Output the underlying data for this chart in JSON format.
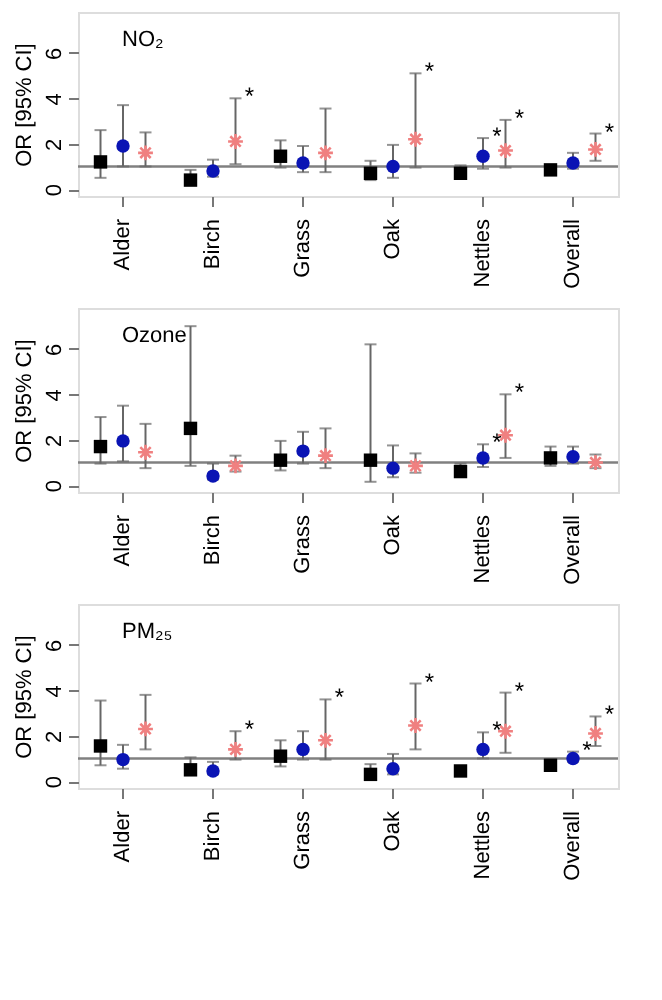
{
  "chart_data": [
    {
      "type": "scatter",
      "title": "NO₂",
      "ylabel": "OR [95% CI]",
      "categories": [
        "Alder",
        "Birch",
        "Grass",
        "Oak",
        "Nettles",
        "Overall"
      ],
      "ylim": [
        -0.3,
        7.8
      ],
      "yticks": [
        0,
        2,
        4,
        6
      ],
      "grid": false,
      "ref_lines": [
        {
          "axis": "y",
          "value": 1,
          "color": "#808080"
        }
      ],
      "series": [
        {
          "color": "#000000",
          "marker": "square",
          "values": [
            1.2,
            0.4,
            1.45,
            0.7,
            0.7,
            0.85
          ],
          "errors": [
            [
              0.5,
              2.6
            ],
            [
              0.25,
              0.85
            ],
            [
              0.95,
              2.15
            ],
            [
              0.4,
              1.25
            ],
            [
              0.5,
              1.05
            ],
            [
              0.7,
              1.0
            ]
          ]
        },
        {
          "color": "#0a14b4",
          "marker": "circle",
          "values": [
            1.9,
            0.8,
            1.15,
            1.0,
            1.45,
            1.15
          ],
          "errors": [
            [
              1.0,
              3.7
            ],
            [
              0.55,
              1.3
            ],
            [
              0.75,
              1.9
            ],
            [
              0.5,
              1.95
            ],
            [
              0.9,
              2.25
            ],
            [
              0.9,
              1.6
            ]
          ],
          "value_labels": [
            null,
            null,
            null,
            null,
            "*",
            null
          ]
        },
        {
          "color": "#f08080",
          "marker": "cross",
          "values": [
            1.6,
            2.1,
            1.6,
            2.2,
            1.7,
            1.75
          ],
          "errors": [
            [
              1.0,
              2.5
            ],
            [
              1.1,
              4.0
            ],
            [
              0.75,
              3.55
            ],
            [
              0.95,
              5.1
            ],
            [
              0.95,
              3.05
            ],
            [
              1.25,
              2.45
            ]
          ],
          "value_labels": [
            null,
            "*",
            null,
            "*",
            "*",
            "*"
          ]
        }
      ]
    },
    {
      "type": "scatter",
      "title": "Ozone",
      "ylabel": "OR [95% CI]",
      "categories": [
        "Alder",
        "Birch",
        "Grass",
        "Oak",
        "Nettles",
        "Overall"
      ],
      "ylim": [
        -0.3,
        7.8
      ],
      "yticks": [
        0,
        2,
        4,
        6
      ],
      "grid": false,
      "ref_lines": [
        {
          "axis": "y",
          "value": 1,
          "color": "#808080"
        }
      ],
      "series": [
        {
          "color": "#000000",
          "marker": "square",
          "values": [
            1.7,
            2.5,
            1.1,
            1.1,
            0.6,
            1.2
          ],
          "errors": [
            [
              0.95,
              3.0
            ],
            [
              0.85,
              7.0
            ],
            [
              0.65,
              1.95
            ],
            [
              0.15,
              6.2
            ],
            [
              0.4,
              0.95
            ],
            [
              0.85,
              1.7
            ]
          ]
        },
        {
          "color": "#0a14b4",
          "marker": "circle",
          "values": [
            1.95,
            0.4,
            1.5,
            0.75,
            1.2,
            1.25
          ],
          "errors": [
            [
              1.05,
              3.5
            ],
            [
              0.25,
              0.95
            ],
            [
              0.95,
              2.35
            ],
            [
              0.35,
              1.75
            ],
            [
              0.8,
              1.8
            ],
            [
              0.95,
              1.7
            ]
          ],
          "value_labels": [
            null,
            null,
            null,
            null,
            "*",
            null
          ]
        },
        {
          "color": "#f08080",
          "marker": "cross",
          "values": [
            1.45,
            0.85,
            1.3,
            0.85,
            2.2,
            1.0
          ],
          "errors": [
            [
              0.75,
              2.7
            ],
            [
              0.6,
              1.3
            ],
            [
              0.75,
              2.5
            ],
            [
              0.55,
              1.4
            ],
            [
              1.2,
              4.0
            ],
            [
              0.75,
              1.35
            ]
          ],
          "value_labels": [
            null,
            null,
            null,
            null,
            "*",
            null
          ]
        }
      ]
    },
    {
      "type": "scatter",
      "title": "PM₂₅",
      "ylabel": "OR [95% CI]",
      "categories": [
        "Alder",
        "Birch",
        "Grass",
        "Oak",
        "Nettles",
        "Overall"
      ],
      "ylim": [
        -0.3,
        7.8
      ],
      "yticks": [
        0,
        2,
        4,
        6
      ],
      "grid": false,
      "ref_lines": [
        {
          "axis": "y",
          "value": 1,
          "color": "#808080"
        }
      ],
      "series": [
        {
          "color": "#000000",
          "marker": "square",
          "values": [
            1.55,
            0.5,
            1.1,
            0.3,
            0.45,
            0.7
          ],
          "errors": [
            [
              0.7,
              3.55
            ],
            [
              0.3,
              1.05
            ],
            [
              0.65,
              1.8
            ],
            [
              0.15,
              0.75
            ],
            [
              0.35,
              0.65
            ],
            [
              0.55,
              0.95
            ]
          ]
        },
        {
          "color": "#0a14b4",
          "marker": "circle",
          "values": [
            0.95,
            0.45,
            1.4,
            0.55,
            1.4,
            1.0
          ],
          "errors": [
            [
              0.55,
              1.6
            ],
            [
              0.3,
              0.85
            ],
            [
              0.95,
              2.2
            ],
            [
              0.3,
              1.2
            ],
            [
              1.0,
              2.15
            ],
            [
              0.85,
              1.3
            ]
          ],
          "value_labels": [
            null,
            null,
            null,
            null,
            "*",
            "*"
          ]
        },
        {
          "color": "#f08080",
          "marker": "cross",
          "values": [
            2.3,
            1.4,
            1.8,
            2.45,
            2.2,
            2.1
          ],
          "errors": [
            [
              1.4,
              3.8
            ],
            [
              0.95,
              2.2
            ],
            [
              0.95,
              3.6
            ],
            [
              1.4,
              4.3
            ],
            [
              1.25,
              3.9
            ],
            [
              1.55,
              2.85
            ]
          ],
          "value_labels": [
            null,
            "*",
            "*",
            "*",
            "*",
            "*"
          ]
        }
      ]
    }
  ]
}
